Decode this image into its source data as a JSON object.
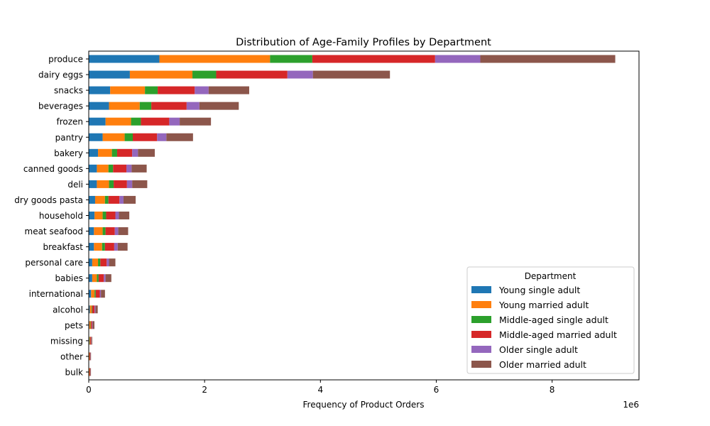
{
  "chart_data": {
    "type": "bar",
    "orientation": "horizontal",
    "stacked": true,
    "title": "Distribution of Age-Family Profiles by Department",
    "xlabel": "Frequency of Product Orders",
    "ylabel": "",
    "x_scale_label": "1e6",
    "xlim": [
      0,
      9.5
    ],
    "x_ticks": [
      0,
      2,
      4,
      6,
      8
    ],
    "x_tick_labels": [
      "0",
      "2",
      "4",
      "6",
      "8"
    ],
    "grid": false,
    "legend": {
      "title": "Department",
      "placement": "lower-right"
    },
    "categories": [
      "produce",
      "dairy eggs",
      "snacks",
      "beverages",
      "frozen",
      "pantry",
      "bakery",
      "canned goods",
      "deli",
      "dry goods pasta",
      "household",
      "meat seafood",
      "breakfast",
      "personal care",
      "babies",
      "international",
      "alcohol",
      "pets",
      "missing",
      "other",
      "bulk"
    ],
    "series": [
      {
        "name": "Young single adult",
        "color": "#1f77b4",
        "values": [
          1.22,
          0.71,
          0.37,
          0.35,
          0.29,
          0.24,
          0.16,
          0.14,
          0.14,
          0.11,
          0.1,
          0.09,
          0.09,
          0.06,
          0.06,
          0.04,
          0.02,
          0.01,
          0.01,
          0.004,
          0.004
        ]
      },
      {
        "name": "Young married adult",
        "color": "#ff7f0e",
        "values": [
          1.91,
          1.08,
          0.6,
          0.53,
          0.44,
          0.38,
          0.24,
          0.2,
          0.21,
          0.17,
          0.14,
          0.15,
          0.14,
          0.1,
          0.08,
          0.06,
          0.03,
          0.02,
          0.01,
          0.008,
          0.008
        ]
      },
      {
        "name": "Middle-aged single adult",
        "color": "#2ca02c",
        "values": [
          0.73,
          0.41,
          0.22,
          0.2,
          0.17,
          0.14,
          0.09,
          0.08,
          0.08,
          0.06,
          0.06,
          0.05,
          0.05,
          0.04,
          0.03,
          0.02,
          0.01,
          0.008,
          0.005,
          0.003,
          0.003
        ]
      },
      {
        "name": "Middle-aged married adult",
        "color": "#d62728",
        "values": [
          2.12,
          1.23,
          0.64,
          0.61,
          0.49,
          0.42,
          0.26,
          0.23,
          0.23,
          0.19,
          0.16,
          0.16,
          0.16,
          0.11,
          0.09,
          0.07,
          0.04,
          0.02,
          0.015,
          0.01,
          0.01
        ]
      },
      {
        "name": "Older single adult",
        "color": "#9467bd",
        "values": [
          0.78,
          0.44,
          0.24,
          0.22,
          0.18,
          0.16,
          0.1,
          0.09,
          0.09,
          0.07,
          0.06,
          0.06,
          0.06,
          0.04,
          0.03,
          0.02,
          0.015,
          0.01,
          0.005,
          0.004,
          0.003
        ]
      },
      {
        "name": "Older married adult",
        "color": "#8c564b",
        "values": [
          2.33,
          1.33,
          0.7,
          0.68,
          0.54,
          0.46,
          0.29,
          0.26,
          0.26,
          0.21,
          0.18,
          0.17,
          0.17,
          0.11,
          0.1,
          0.07,
          0.04,
          0.03,
          0.015,
          0.01,
          0.01
        ]
      }
    ]
  }
}
